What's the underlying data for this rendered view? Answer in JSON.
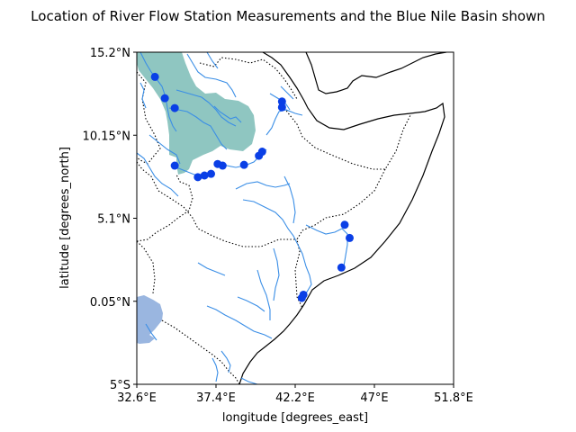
{
  "chart_data": {
    "type": "scatter",
    "title": "Location of River Flow Station Measurements and the Blue Nile Basin shown",
    "xlabel": "longitude [degrees_east]",
    "ylabel": "latitude [degrees_north]",
    "xlim": [
      32.6,
      51.8
    ],
    "ylim": [
      -5.0,
      15.2
    ],
    "xticks": [
      {
        "value": 32.6,
        "label": "32.6°E"
      },
      {
        "value": 37.4,
        "label": "37.4°E"
      },
      {
        "value": 42.2,
        "label": "42.2°E"
      },
      {
        "value": 47.0,
        "label": "47°E"
      },
      {
        "value": 51.8,
        "label": "51.8°E"
      }
    ],
    "yticks": [
      {
        "value": 15.2,
        "label": "15.2°N"
      },
      {
        "value": 10.15,
        "label": "10.15°N"
      },
      {
        "value": 5.1,
        "label": "5.1°N"
      },
      {
        "value": 0.05,
        "label": "0.05°N"
      },
      {
        "value": -5.0,
        "label": "5°S"
      }
    ],
    "colors": {
      "station": "#0a3fe6",
      "river": "#3a8ee6",
      "basin": "#8fc6c1",
      "lake": "#9ab6e0",
      "coast": "#000000",
      "border": "#000000"
    },
    "stations": [
      {
        "lon": 33.7,
        "lat": 13.7
      },
      {
        "lon": 34.3,
        "lat": 12.4
      },
      {
        "lon": 34.9,
        "lat": 11.8
      },
      {
        "lon": 34.9,
        "lat": 8.3
      },
      {
        "lon": 36.3,
        "lat": 7.6
      },
      {
        "lon": 36.7,
        "lat": 7.7
      },
      {
        "lon": 37.1,
        "lat": 7.8
      },
      {
        "lon": 37.5,
        "lat": 8.4
      },
      {
        "lon": 37.8,
        "lat": 8.3
      },
      {
        "lon": 39.1,
        "lat": 8.35
      },
      {
        "lon": 40.0,
        "lat": 8.9
      },
      {
        "lon": 40.2,
        "lat": 9.15
      },
      {
        "lon": 41.4,
        "lat": 12.2
      },
      {
        "lon": 41.4,
        "lat": 11.85
      },
      {
        "lon": 45.2,
        "lat": 4.7
      },
      {
        "lon": 45.5,
        "lat": 3.9
      },
      {
        "lon": 45.0,
        "lat": 2.1
      },
      {
        "lon": 42.7,
        "lat": 0.45
      },
      {
        "lon": 42.6,
        "lat": 0.25
      }
    ]
  }
}
